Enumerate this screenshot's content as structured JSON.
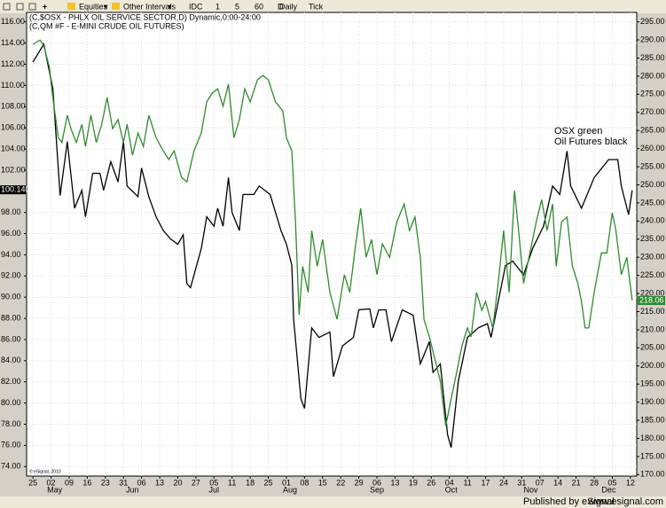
{
  "toolbar": {
    "items": [
      "Equities",
      "Other Intervals",
      "IDC",
      "1",
      "5",
      "60",
      "D",
      "Daily",
      "Tick"
    ]
  },
  "chart_data": {
    "type": "line",
    "header": [
      "(C,$OSX - PHLX OIL SERVICE SECTOR,D) Dynamic,0:00-24:00",
      "(C,QM #F - E-MINI CRUDE OIL FUTURES)"
    ],
    "annotations": [
      "OSX green",
      "Oil Futures black"
    ],
    "copyright": "© eSignal, 2010",
    "grid": true,
    "xlim": [
      -0.35,
      33.35
    ],
    "xticks": [
      {
        "value": 0,
        "label": "25"
      },
      {
        "value": 1,
        "label": "02"
      },
      {
        "value": 2,
        "label": "09"
      },
      {
        "value": 3,
        "label": "16"
      },
      {
        "value": 4,
        "label": "23"
      },
      {
        "value": 5,
        "label": "31"
      },
      {
        "value": 6,
        "label": "06"
      },
      {
        "value": 7,
        "label": "13"
      },
      {
        "value": 8,
        "label": "20"
      },
      {
        "value": 9,
        "label": "27"
      },
      {
        "value": 10,
        "label": "05"
      },
      {
        "value": 11,
        "label": "11"
      },
      {
        "value": 12,
        "label": "18"
      },
      {
        "value": 13,
        "label": "25"
      },
      {
        "value": 14,
        "label": "01"
      },
      {
        "value": 15,
        "label": "08"
      },
      {
        "value": 16,
        "label": "15"
      },
      {
        "value": 17,
        "label": "22"
      },
      {
        "value": 18,
        "label": "29"
      },
      {
        "value": 19,
        "label": "06"
      },
      {
        "value": 20,
        "label": "13"
      },
      {
        "value": 21,
        "label": "19"
      },
      {
        "value": 22,
        "label": "26"
      },
      {
        "value": 23,
        "label": "04"
      },
      {
        "value": 24,
        "label": "11"
      },
      {
        "value": 25,
        "label": "17"
      },
      {
        "value": 26,
        "label": "24"
      },
      {
        "value": 27,
        "label": "31"
      },
      {
        "value": 28,
        "label": "07"
      },
      {
        "value": 29,
        "label": "14"
      },
      {
        "value": 30,
        "label": "21"
      },
      {
        "value": 31,
        "label": "28"
      },
      {
        "value": 32,
        "label": "05"
      },
      {
        "value": 33,
        "label": "12"
      }
    ],
    "month_ticks": [
      {
        "value": 1.2,
        "label": "May"
      },
      {
        "value": 5.5,
        "label": "Jun"
      },
      {
        "value": 10,
        "label": "Jul"
      },
      {
        "value": 14.2,
        "label": "Aug"
      },
      {
        "value": 19,
        "label": "Sep"
      },
      {
        "value": 23.1,
        "label": "Oct"
      },
      {
        "value": 27.5,
        "label": "Nov"
      },
      {
        "value": 31.8,
        "label": "Dec"
      }
    ],
    "ylim": [
      73.1,
      116.9
    ],
    "yticks": [
      {
        "value": 74,
        "label": "74.00"
      },
      {
        "value": 76,
        "label": "76.00"
      },
      {
        "value": 78,
        "label": "78.00"
      },
      {
        "value": 80,
        "label": "80.00"
      },
      {
        "value": 82,
        "label": "82.00"
      },
      {
        "value": 84,
        "label": "84.00"
      },
      {
        "value": 86,
        "label": "86.00"
      },
      {
        "value": 88,
        "label": "88.00"
      },
      {
        "value": 90,
        "label": "90.00"
      },
      {
        "value": 92,
        "label": "92.00"
      },
      {
        "value": 94,
        "label": "94.00"
      },
      {
        "value": 96,
        "label": "96.00"
      },
      {
        "value": 98,
        "label": "98.00"
      },
      {
        "value": 102,
        "label": "102.00"
      },
      {
        "value": 104,
        "label": "104.00"
      },
      {
        "value": 106,
        "label": "106.00"
      },
      {
        "value": 108,
        "label": "108.00"
      },
      {
        "value": 110,
        "label": "110.00"
      },
      {
        "value": 112,
        "label": "112.00"
      },
      {
        "value": 114,
        "label": "114.00"
      },
      {
        "value": 116,
        "label": "116.00"
      }
    ],
    "y2lim": [
      169.6,
      297.6
    ],
    "y2ticks": [
      {
        "value": 170,
        "label": "170.00"
      },
      {
        "value": 175,
        "label": "175.00"
      },
      {
        "value": 180,
        "label": "180.00"
      },
      {
        "value": 185,
        "label": "185.00"
      },
      {
        "value": 190,
        "label": "190.00"
      },
      {
        "value": 195,
        "label": "195.00"
      },
      {
        "value": 200,
        "label": "200.00"
      },
      {
        "value": 205,
        "label": "205.00"
      },
      {
        "value": 210,
        "label": "210.00"
      },
      {
        "value": 215,
        "label": "215.00"
      },
      {
        "value": 220,
        "label": "220.00"
      },
      {
        "value": 225,
        "label": "225.00"
      },
      {
        "value": 230,
        "label": "230.00"
      },
      {
        "value": 235,
        "label": "235.00"
      },
      {
        "value": 240,
        "label": "240.00"
      },
      {
        "value": 245,
        "label": "245.00"
      },
      {
        "value": 250,
        "label": "250.00"
      },
      {
        "value": 255,
        "label": "255.00"
      },
      {
        "value": 260,
        "label": "260.00"
      },
      {
        "value": 265,
        "label": "265.00"
      },
      {
        "value": 270,
        "label": "270.00"
      },
      {
        "value": 275,
        "label": "275.00"
      },
      {
        "value": 280,
        "label": "280.00"
      },
      {
        "value": 285,
        "label": "285.00"
      },
      {
        "value": 290,
        "label": "290.00"
      },
      {
        "value": 295,
        "label": "295.00"
      }
    ],
    "series": [
      {
        "color": "#000000",
        "x": [
          0,
          0.6,
          1.1,
          1.5,
          1.9,
          2.3,
          2.7,
          2.9,
          3.3,
          3.7,
          3.9,
          4.3,
          4.7,
          5.0,
          5.2,
          5.8,
          6.0,
          6.4,
          6.8,
          7.2,
          7.6,
          8.0,
          8.3,
          8.5,
          8.7,
          9.3,
          9.6,
          10.0,
          10.2,
          10.5,
          10.8,
          11.0,
          11.4,
          11.6,
          12.2,
          12.5,
          13.1,
          13.7,
          14.0,
          14.3,
          14.4,
          14.8,
          15.0,
          15.4,
          15.8,
          16.4,
          16.6,
          17.1,
          17.7,
          18.0,
          18.6,
          18.8,
          19.1,
          19.5,
          19.8,
          20.4,
          21.0,
          21.4,
          21.9,
          22.1,
          22.5,
          22.9,
          23.1,
          23.5,
          24.0,
          24.6,
          25.1,
          25.3,
          25.9,
          26.1,
          26.5,
          27.1,
          27.6,
          28.2,
          28.7,
          29.1,
          29.5,
          29.7,
          30.3,
          31.0,
          31.8,
          32.3,
          32.5,
          32.9,
          33.1
        ],
        "values": [
          112.2,
          113.9,
          109.7,
          99.6,
          104.7,
          98.4,
          100.1,
          97.6,
          101.7,
          101.7,
          100.1,
          102.8,
          100.9,
          104.7,
          100.5,
          99.5,
          102.2,
          99.5,
          97.6,
          96.3,
          95.5,
          95.0,
          95.9,
          91.3,
          90.9,
          94.6,
          97.6,
          96.7,
          98.4,
          96.7,
          101.3,
          98.0,
          96.3,
          99.7,
          99.7,
          100.5,
          99.7,
          96.3,
          95.0,
          93.0,
          87.9,
          80.4,
          79.5,
          87.1,
          86.2,
          86.7,
          82.5,
          85.4,
          86.2,
          88.8,
          88.9,
          87.1,
          88.8,
          88.8,
          85.8,
          88.8,
          88.3,
          83.7,
          85.8,
          82.9,
          83.7,
          77.0,
          75.8,
          82.1,
          86.2,
          87.1,
          87.5,
          86.2,
          91.3,
          93.0,
          93.4,
          92.1,
          94.6,
          96.7,
          100.5,
          99.7,
          103.8,
          100.5,
          98.4,
          101.3,
          103.0,
          103.0,
          100.5,
          97.8,
          100.1
        ],
        "last_value": {
          "value": 100.14,
          "label": "100.140"
        }
      },
      {
        "color": "#2e8b2e",
        "axis": "y2",
        "x": [
          0,
          0.4,
          0.6,
          0.9,
          1.1,
          1.4,
          1.6,
          1.9,
          2.1,
          2.4,
          2.7,
          2.9,
          3.2,
          3.5,
          3.8,
          4.1,
          4.4,
          4.7,
          5.0,
          5.2,
          5.5,
          5.8,
          6.1,
          6.4,
          6.8,
          7.2,
          7.5,
          7.8,
          8.2,
          8.5,
          8.9,
          9.3,
          9.6,
          9.9,
          10.2,
          10.5,
          10.8,
          11.1,
          11.4,
          11.7,
          12.0,
          12.4,
          12.7,
          13.0,
          13.4,
          13.8,
          14.0,
          14.3,
          14.5,
          14.7,
          14.9,
          15.2,
          15.4,
          15.7,
          16.0,
          16.4,
          16.8,
          17.2,
          17.5,
          17.8,
          18.1,
          18.4,
          18.7,
          19.0,
          19.3,
          19.7,
          20.1,
          20.5,
          20.8,
          21.1,
          21.4,
          21.6,
          21.9,
          22.2,
          22.5,
          22.8,
          23.1,
          23.4,
          23.7,
          24.0,
          24.2,
          24.5,
          24.8,
          25.0,
          25.4,
          25.7,
          26.0,
          26.3,
          26.6,
          26.8,
          27.1,
          27.4,
          27.8,
          28.1,
          28.4,
          28.7,
          28.9,
          29.2,
          29.5,
          29.8,
          30.1,
          30.3,
          30.5,
          30.7,
          31.0,
          31.4,
          31.7,
          32.0,
          32.2,
          32.5,
          32.8,
          33.1
        ],
        "values": [
          288.8,
          290.0,
          288.3,
          282.7,
          274.1,
          263.0,
          261.7,
          269.2,
          265.5,
          261.7,
          266.7,
          260.6,
          269.2,
          261.7,
          266.7,
          274.1,
          265.5,
          268.0,
          261.7,
          266.7,
          258.2,
          264.3,
          260.6,
          269.2,
          263.0,
          259.4,
          257.0,
          259.4,
          252.1,
          250.8,
          259.4,
          264.3,
          272.9,
          275.3,
          276.5,
          271.7,
          277.8,
          263.0,
          268.0,
          276.5,
          272.9,
          279.0,
          280.2,
          279.0,
          272.9,
          270.4,
          263.0,
          259.4,
          239.8,
          214.1,
          227.5,
          220.3,
          237.4,
          227.5,
          234.9,
          220.3,
          212.9,
          225.2,
          220.3,
          232.5,
          243.5,
          230.0,
          234.9,
          225.2,
          233.7,
          230.0,
          239.8,
          244.7,
          237.4,
          241.1,
          230.0,
          212.9,
          208.0,
          201.9,
          195.8,
          183.5,
          190.9,
          198.2,
          205.6,
          210.5,
          208.0,
          220.3,
          215.4,
          217.8,
          210.5,
          222.8,
          237.4,
          220.3,
          248.4,
          238.6,
          222.8,
          230.0,
          239.8,
          245.9,
          237.4,
          244.7,
          227.5,
          239.8,
          241.1,
          227.5,
          222.8,
          217.8,
          210.5,
          210.5,
          220.3,
          231.2,
          231.2,
          242.3,
          237.4,
          225.2,
          230.0,
          218.1
        ],
        "last_value": {
          "value": 218.06,
          "label": "218.06"
        }
      }
    ]
  },
  "footer": {
    "left": "Published by eSignal",
    "right": "www.esignal.com"
  }
}
